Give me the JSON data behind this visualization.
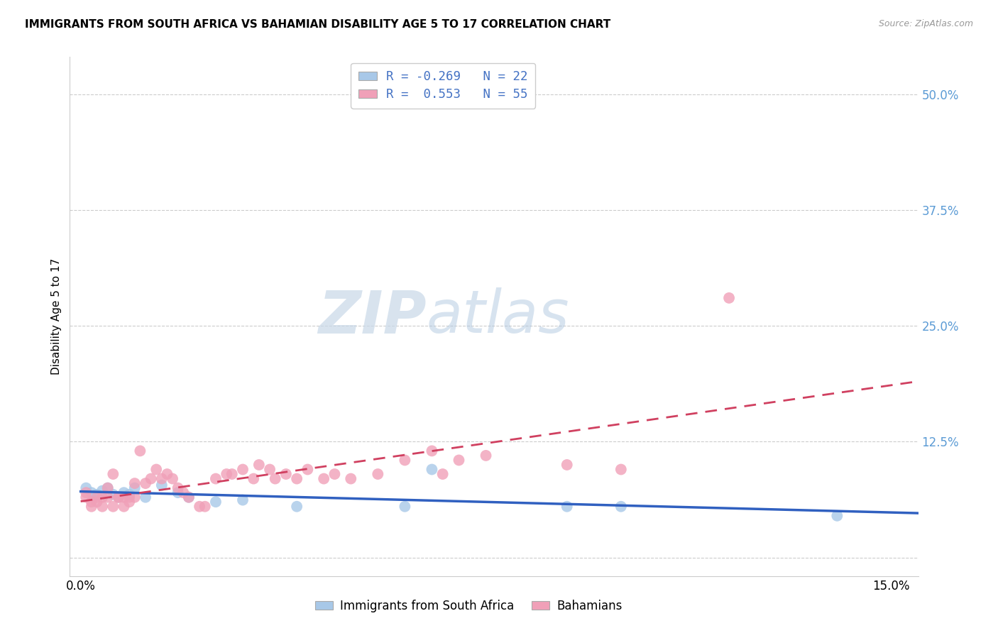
{
  "title": "IMMIGRANTS FROM SOUTH AFRICA VS BAHAMIAN DISABILITY AGE 5 TO 17 CORRELATION CHART",
  "source": "Source: ZipAtlas.com",
  "ylabel": "Disability Age 5 to 17",
  "xlim": [
    -0.002,
    0.155
  ],
  "ylim": [
    -0.02,
    0.54
  ],
  "yticks": [
    0.0,
    0.125,
    0.25,
    0.375,
    0.5
  ],
  "ytick_labels": [
    "",
    "12.5%",
    "25.0%",
    "37.5%",
    "50.0%"
  ],
  "xticks": [
    0.0,
    0.05,
    0.1,
    0.15
  ],
  "xtick_labels": [
    "0.0%",
    "",
    "",
    "15.0%"
  ],
  "legend_label1": "Immigrants from South Africa",
  "legend_label2": "Bahamians",
  "watermark_zip": "ZIP",
  "watermark_atlas": "atlas",
  "blue_color": "#a8c8e8",
  "pink_color": "#f0a0b8",
  "line_blue": "#3060c0",
  "line_pink": "#d04060",
  "blue_x": [
    0.001,
    0.002,
    0.003,
    0.004,
    0.005,
    0.006,
    0.007,
    0.008,
    0.009,
    0.01,
    0.012,
    0.015,
    0.018,
    0.02,
    0.025,
    0.03,
    0.04,
    0.06,
    0.065,
    0.09,
    0.1,
    0.14
  ],
  "blue_y": [
    0.075,
    0.07,
    0.068,
    0.072,
    0.075,
    0.068,
    0.065,
    0.07,
    0.068,
    0.075,
    0.065,
    0.078,
    0.07,
    0.065,
    0.06,
    0.062,
    0.055,
    0.055,
    0.095,
    0.055,
    0.055,
    0.045
  ],
  "pink_x": [
    0.001,
    0.001,
    0.002,
    0.002,
    0.003,
    0.003,
    0.004,
    0.004,
    0.005,
    0.005,
    0.006,
    0.006,
    0.007,
    0.007,
    0.008,
    0.008,
    0.009,
    0.009,
    0.01,
    0.01,
    0.011,
    0.012,
    0.013,
    0.014,
    0.015,
    0.016,
    0.017,
    0.018,
    0.019,
    0.02,
    0.022,
    0.023,
    0.025,
    0.027,
    0.028,
    0.03,
    0.032,
    0.033,
    0.035,
    0.036,
    0.038,
    0.04,
    0.042,
    0.045,
    0.047,
    0.05,
    0.055,
    0.06,
    0.065,
    0.067,
    0.07,
    0.075,
    0.09,
    0.1,
    0.12
  ],
  "pink_y": [
    0.07,
    0.065,
    0.06,
    0.055,
    0.065,
    0.06,
    0.065,
    0.055,
    0.075,
    0.065,
    0.09,
    0.055,
    0.065,
    0.065,
    0.065,
    0.055,
    0.065,
    0.06,
    0.065,
    0.08,
    0.115,
    0.08,
    0.085,
    0.095,
    0.085,
    0.09,
    0.085,
    0.075,
    0.07,
    0.065,
    0.055,
    0.055,
    0.085,
    0.09,
    0.09,
    0.095,
    0.085,
    0.1,
    0.095,
    0.085,
    0.09,
    0.085,
    0.095,
    0.085,
    0.09,
    0.085,
    0.09,
    0.105,
    0.115,
    0.09,
    0.105,
    0.11,
    0.1,
    0.095,
    0.28
  ]
}
